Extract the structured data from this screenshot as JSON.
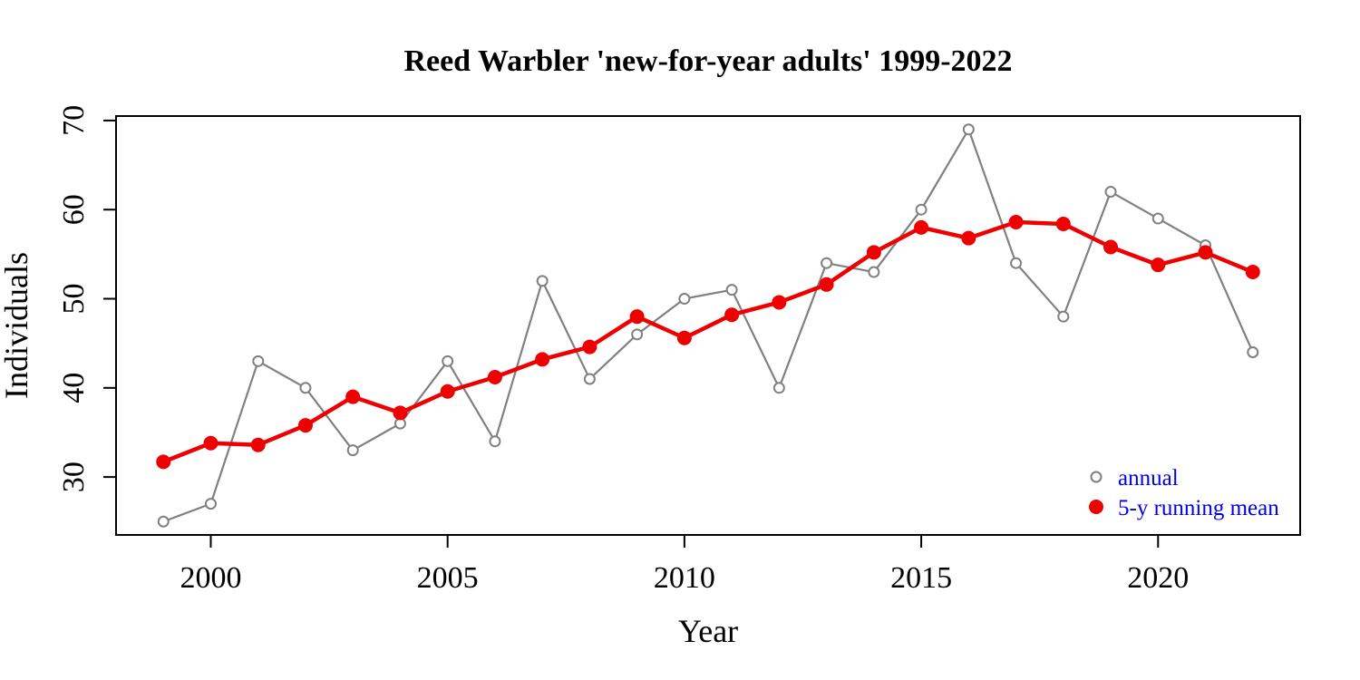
{
  "chart_data": {
    "type": "line",
    "title": "Reed Warbler 'new-for-year adults' 1999-2022",
    "xlabel": "Year",
    "ylabel": "Individuals",
    "xlim": [
      1998,
      2023
    ],
    "ylim": [
      23.5,
      70.5
    ],
    "x_ticks": [
      2000,
      2005,
      2010,
      2015,
      2020
    ],
    "y_ticks": [
      30,
      40,
      50,
      60,
      70
    ],
    "grid": false,
    "legend_position": "bottom-right",
    "x": [
      1999,
      2000,
      2001,
      2002,
      2003,
      2004,
      2005,
      2006,
      2007,
      2008,
      2009,
      2010,
      2011,
      2012,
      2013,
      2014,
      2015,
      2016,
      2017,
      2018,
      2019,
      2020,
      2021,
      2022
    ],
    "series": [
      {
        "name": "annual",
        "color": "#808080",
        "marker": "open-circle",
        "values": [
          25,
          27,
          43,
          40,
          33,
          36,
          43,
          34,
          52,
          41,
          46,
          50,
          51,
          40,
          54,
          53,
          60,
          69,
          54,
          48,
          62,
          59,
          56,
          44
        ]
      },
      {
        "name": "5-y running mean",
        "color": "#ee0000",
        "marker": "filled-circle",
        "values": [
          31.7,
          33.8,
          33.6,
          35.8,
          39.0,
          37.2,
          39.6,
          41.2,
          43.2,
          44.6,
          48.0,
          45.6,
          48.2,
          49.6,
          51.6,
          55.2,
          58.0,
          56.8,
          58.6,
          58.4,
          55.8,
          53.8,
          55.2,
          53.0
        ]
      }
    ],
    "legend_text_color": "#0000ee"
  }
}
